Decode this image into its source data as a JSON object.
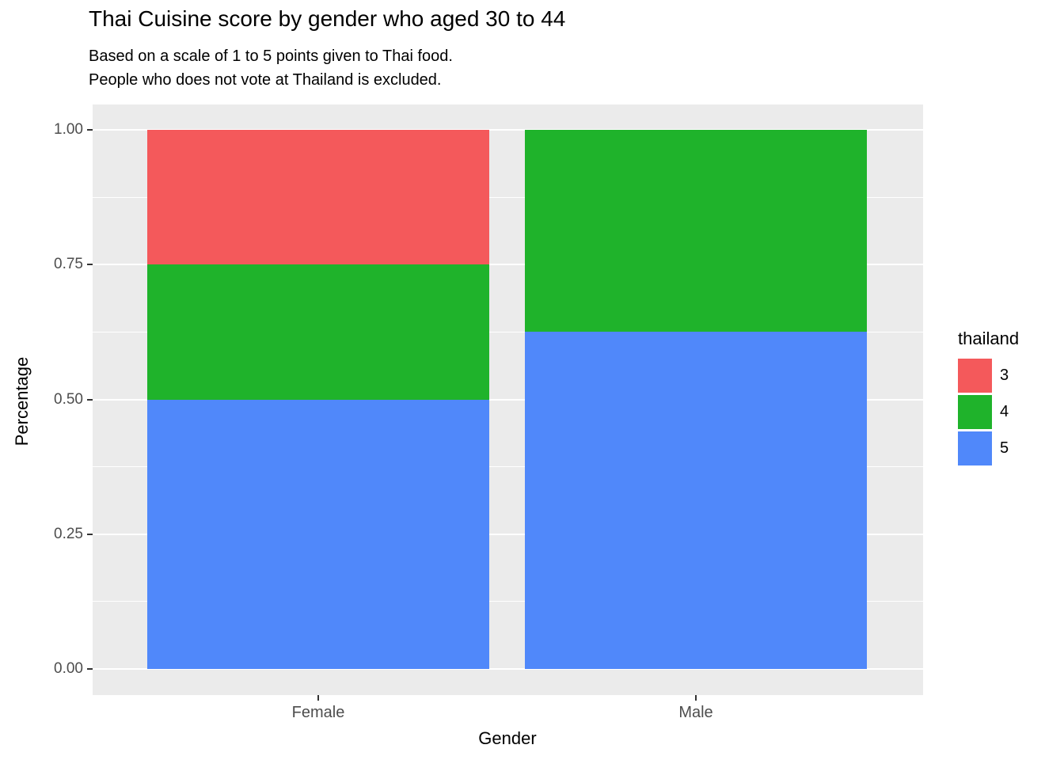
{
  "title": "Thai Cuisine score by gender who aged 30 to 44",
  "subtitle_line1": "Based on a scale of 1 to 5 points given to Thai food.",
  "subtitle_line2": "People who does not vote at Thailand is excluded.",
  "chart_data": {
    "type": "bar",
    "stacked": true,
    "orientation": "vertical",
    "title": "Thai Cuisine score by gender who aged 30 to 44",
    "subtitle": "Based on a scale of 1 to 5 points given to Thai food.\nPeople who does not vote at Thailand is excluded.",
    "xlabel": "Gender",
    "ylabel": "Percentage",
    "categories": [
      "Female",
      "Male"
    ],
    "series": [
      {
        "name": "3",
        "color": "#F4595B",
        "values": [
          0.25,
          0.0
        ]
      },
      {
        "name": "4",
        "color": "#1FB32B",
        "values": [
          0.25,
          0.375
        ]
      },
      {
        "name": "5",
        "color": "#5088FA",
        "values": [
          0.5,
          0.625
        ]
      }
    ],
    "ylim": [
      0,
      1
    ],
    "ytick_labels": [
      "0.00",
      "0.25",
      "0.50",
      "0.75",
      "1.00"
    ],
    "ytick_values": [
      0,
      0.25,
      0.5,
      0.75,
      1.0
    ],
    "minor_gridline_values": [
      0.125,
      0.375,
      0.625,
      0.875
    ],
    "grid": true,
    "legend_title": "thailand",
    "legend_position": "right",
    "panel_background": "#EBEBEB",
    "gridline_color": "#FFFFFF"
  },
  "legend": {
    "title": "thailand"
  }
}
